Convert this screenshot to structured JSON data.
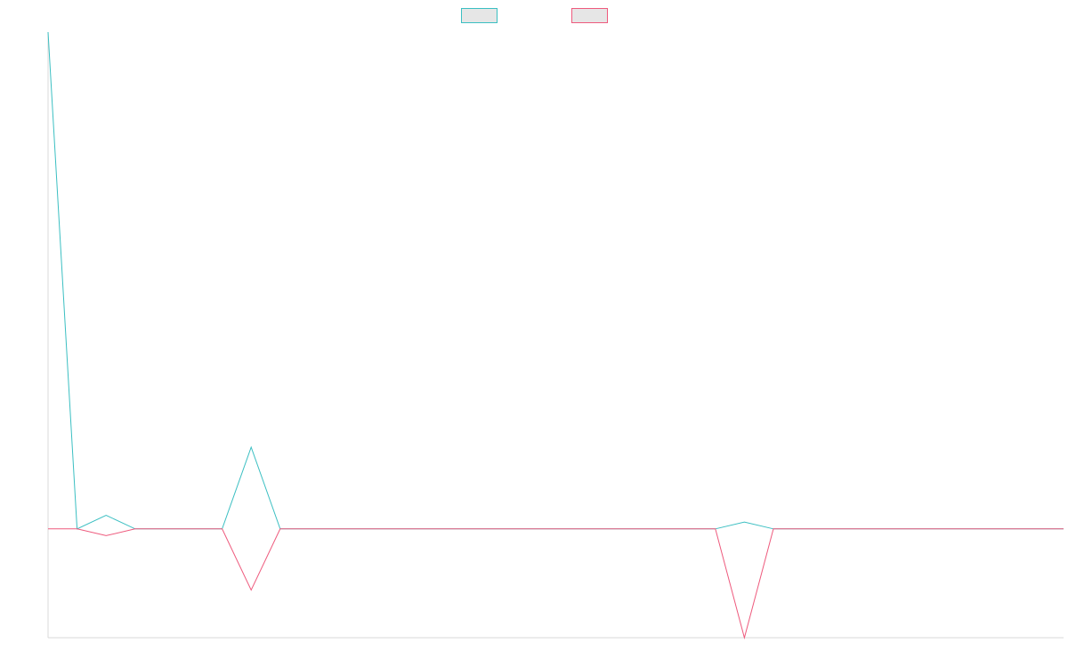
{
  "chart_data": {
    "type": "line",
    "title": "",
    "xlabel": "",
    "ylabel": "",
    "x": [
      0,
      1,
      2,
      3,
      4,
      5,
      6,
      7,
      8,
      9,
      10,
      11,
      12,
      13,
      14,
      15,
      16,
      17,
      18,
      19,
      20,
      21,
      22,
      23,
      24,
      25,
      26,
      27,
      28,
      29,
      30,
      31,
      32,
      33,
      34,
      35
    ],
    "xlim": [
      0,
      35
    ],
    "ylim": [
      -1.6,
      7.3
    ],
    "grid": false,
    "legend_position": "top-center",
    "series": [
      {
        "color": "#3bbfc2",
        "fill": "#e6e6e6",
        "values": [
          7.3,
          0.0,
          0.2,
          0.0,
          0.0,
          0.0,
          0.0,
          1.2,
          0.0,
          0.0,
          0.0,
          0.0,
          0.0,
          0.0,
          0.0,
          0.0,
          0.0,
          0.0,
          0.0,
          0.0,
          0.0,
          0.0,
          0.0,
          0.0,
          0.1,
          0.0,
          0.0,
          0.0,
          0.0,
          0.0,
          0.0,
          0.0,
          0.0,
          0.0,
          0.0,
          0.0
        ]
      },
      {
        "color": "#ee5a7d",
        "fill": "#e6e6e6",
        "values": [
          0.0,
          0.0,
          -0.1,
          0.0,
          0.0,
          0.0,
          0.0,
          -0.9,
          0.0,
          0.0,
          0.0,
          0.0,
          0.0,
          0.0,
          0.0,
          0.0,
          0.0,
          0.0,
          0.0,
          0.0,
          0.0,
          0.0,
          0.0,
          0.0,
          -1.6,
          0.0,
          0.0,
          0.0,
          0.0,
          0.0,
          0.0,
          0.0,
          0.0,
          0.0,
          0.0,
          0.0
        ]
      }
    ]
  }
}
